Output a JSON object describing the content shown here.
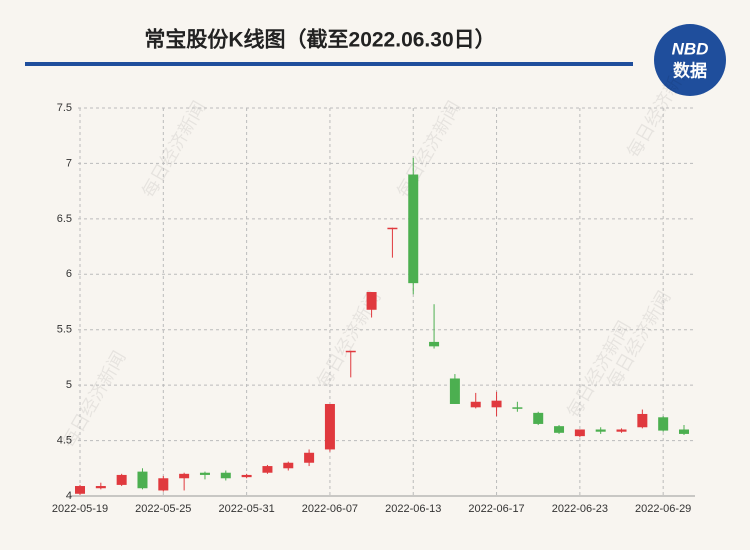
{
  "header": {
    "title": "常宝股份K线图（截至2022.06.30日）",
    "logo_top": "NBD",
    "logo_bottom": "数据"
  },
  "watermark": "每日经济新闻",
  "chart_data": {
    "type": "candlestick",
    "categories": [
      "2022-05-19",
      null,
      null,
      null,
      "2022-05-25",
      null,
      null,
      null,
      "2022-05-31",
      null,
      null,
      null,
      "2022-06-07",
      null,
      null,
      null,
      "2022-06-13",
      null,
      null,
      null,
      "2022-06-17",
      null,
      null,
      null,
      "2022-06-23",
      null,
      null,
      null,
      "2022-06-29",
      null
    ],
    "open": [
      4.02,
      4.07,
      4.1,
      4.22,
      4.05,
      4.16,
      4.21,
      4.21,
      4.17,
      4.21,
      4.25,
      4.3,
      4.42,
      5.3,
      5.68,
      6.41,
      6.9,
      5.39,
      5.06,
      4.8,
      4.8,
      4.8,
      4.75,
      4.63,
      4.54,
      4.6,
      4.58,
      4.62,
      4.71,
      4.6
    ],
    "high": [
      4.1,
      4.12,
      4.2,
      4.25,
      4.18,
      4.21,
      4.22,
      4.23,
      4.2,
      4.28,
      4.31,
      4.42,
      4.83,
      5.31,
      5.84,
      6.42,
      7.05,
      5.73,
      5.1,
      4.93,
      4.94,
      4.85,
      4.76,
      4.64,
      4.6,
      4.62,
      4.61,
      4.78,
      4.72,
      4.64
    ],
    "low": [
      4.01,
      4.06,
      4.09,
      4.06,
      4.04,
      4.05,
      4.15,
      4.14,
      4.16,
      4.2,
      4.23,
      4.27,
      4.4,
      5.07,
      5.61,
      6.15,
      5.82,
      5.33,
      4.83,
      4.79,
      4.72,
      4.76,
      4.64,
      4.56,
      4.53,
      4.56,
      4.57,
      4.61,
      4.58,
      4.55
    ],
    "close": [
      4.09,
      4.09,
      4.19,
      4.07,
      4.16,
      4.2,
      4.19,
      4.16,
      4.19,
      4.27,
      4.3,
      4.39,
      4.83,
      5.31,
      5.84,
      6.42,
      5.92,
      5.35,
      4.83,
      4.85,
      4.86,
      4.79,
      4.65,
      4.57,
      4.6,
      4.58,
      4.6,
      4.74,
      4.59,
      4.56
    ],
    "up_color": "#e0393e",
    "down_color": "#4caf50",
    "ylim": [
      4,
      7.5
    ],
    "yticks": [
      4,
      4.5,
      5,
      5.5,
      6,
      6.5,
      7,
      7.5
    ],
    "grid": true
  }
}
